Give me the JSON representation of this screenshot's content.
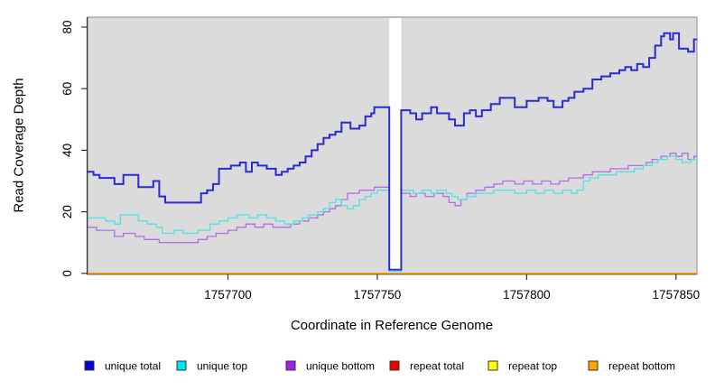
{
  "chart_data": {
    "type": "line",
    "subtype": "step-coverage-plot",
    "title": "",
    "xlabel": "Coordinate in Reference Genome",
    "ylabel": "Read Coverage Depth",
    "x_range": [
      1757653,
      1757857
    ],
    "y_range": [
      0,
      83
    ],
    "x_ticks": [
      1757700,
      1757750,
      1757800,
      1757850
    ],
    "y_ticks": [
      0,
      20,
      40,
      60,
      80
    ],
    "grid": false,
    "legend_position": "bottom",
    "panel_bg": "#dbdbdb",
    "frame_color": "#9a9a9a",
    "axis_color": "#333333",
    "coverage_gap": {
      "x_start": 1757754,
      "x_end": 1757758
    },
    "legend_x": [
      94,
      196,
      317,
      432,
      541,
      652
    ],
    "series": [
      {
        "name": "unique-total",
        "label": "unique total",
        "color": "#2b2bd5",
        "legend_color": "#0000e0",
        "line_width": 2,
        "z": 6,
        "points": [
          [
            1757653,
            33
          ],
          [
            1757655,
            32
          ],
          [
            1757657,
            31
          ],
          [
            1757662,
            29
          ],
          [
            1757665,
            32
          ],
          [
            1757670,
            28
          ],
          [
            1757675,
            30
          ],
          [
            1757677,
            25
          ],
          [
            1757679,
            23
          ],
          [
            1757691,
            26
          ],
          [
            1757693,
            27
          ],
          [
            1757695,
            29
          ],
          [
            1757697,
            34
          ],
          [
            1757701,
            35
          ],
          [
            1757704,
            36
          ],
          [
            1757706,
            33
          ],
          [
            1757708,
            36
          ],
          [
            1757710,
            35
          ],
          [
            1757713,
            34
          ],
          [
            1757716,
            32
          ],
          [
            1757718,
            33
          ],
          [
            1757720,
            34
          ],
          [
            1757722,
            35
          ],
          [
            1757724,
            36
          ],
          [
            1757726,
            38
          ],
          [
            1757728,
            40
          ],
          [
            1757730,
            42
          ],
          [
            1757732,
            44
          ],
          [
            1757734,
            45
          ],
          [
            1757736,
            46
          ],
          [
            1757738,
            49
          ],
          [
            1757741,
            47
          ],
          [
            1757744,
            48
          ],
          [
            1757746,
            51
          ],
          [
            1757748,
            52
          ],
          [
            1757749,
            54
          ],
          [
            1757754,
            1.2
          ],
          [
            1757758,
            53
          ],
          [
            1757761,
            52
          ],
          [
            1757763,
            50
          ],
          [
            1757765,
            52
          ],
          [
            1757768,
            54
          ],
          [
            1757770,
            52
          ],
          [
            1757774,
            50
          ],
          [
            1757776,
            48
          ],
          [
            1757779,
            52
          ],
          [
            1757781,
            53
          ],
          [
            1757783,
            51
          ],
          [
            1757785,
            53
          ],
          [
            1757788,
            55
          ],
          [
            1757791,
            57
          ],
          [
            1757796,
            54
          ],
          [
            1757800,
            56
          ],
          [
            1757804,
            57
          ],
          [
            1757807,
            56
          ],
          [
            1757809,
            54
          ],
          [
            1757812,
            56
          ],
          [
            1757814,
            57
          ],
          [
            1757816,
            59
          ],
          [
            1757819,
            60
          ],
          [
            1757822,
            63
          ],
          [
            1757825,
            64
          ],
          [
            1757828,
            65
          ],
          [
            1757831,
            66
          ],
          [
            1757833,
            67
          ],
          [
            1757835,
            66
          ],
          [
            1757837,
            68
          ],
          [
            1757839,
            67
          ],
          [
            1757841,
            70
          ],
          [
            1757843,
            74
          ],
          [
            1757845,
            77
          ],
          [
            1757846,
            78
          ],
          [
            1757848,
            76
          ],
          [
            1757849,
            78
          ],
          [
            1757851,
            73
          ],
          [
            1757854,
            72
          ],
          [
            1757856,
            76
          ]
        ]
      },
      {
        "name": "unique-top",
        "label": "unique top",
        "color": "#52e2e2",
        "legend_color": "#00e5ee",
        "line_width": 1.3,
        "z": 5,
        "points": [
          [
            1757653,
            18
          ],
          [
            1757659,
            17
          ],
          [
            1757662,
            16
          ],
          [
            1757664,
            19
          ],
          [
            1757670,
            17
          ],
          [
            1757673,
            16
          ],
          [
            1757676,
            15
          ],
          [
            1757678,
            13
          ],
          [
            1757682,
            14
          ],
          [
            1757685,
            13
          ],
          [
            1757690,
            14
          ],
          [
            1757694,
            16
          ],
          [
            1757697,
            17
          ],
          [
            1757700,
            18
          ],
          [
            1757703,
            19
          ],
          [
            1757707,
            18
          ],
          [
            1757710,
            19
          ],
          [
            1757713,
            18
          ],
          [
            1757716,
            17
          ],
          [
            1757719,
            16
          ],
          [
            1757722,
            17
          ],
          [
            1757725,
            18
          ],
          [
            1757727,
            19
          ],
          [
            1757730,
            20
          ],
          [
            1757732,
            21
          ],
          [
            1757734,
            23
          ],
          [
            1757736,
            24
          ],
          [
            1757738,
            22
          ],
          [
            1757740,
            21
          ],
          [
            1757742,
            22
          ],
          [
            1757744,
            24
          ],
          [
            1757746,
            25
          ],
          [
            1757748,
            26
          ],
          [
            1757750,
            27
          ],
          [
            1757754,
            0.6
          ],
          [
            1757758,
            27
          ],
          [
            1757762,
            26
          ],
          [
            1757765,
            27
          ],
          [
            1757768,
            26
          ],
          [
            1757770,
            27
          ],
          [
            1757773,
            26
          ],
          [
            1757775,
            25
          ],
          [
            1757777,
            24
          ],
          [
            1757780,
            25
          ],
          [
            1757783,
            26
          ],
          [
            1757789,
            27
          ],
          [
            1757796,
            26
          ],
          [
            1757800,
            27
          ],
          [
            1757803,
            26
          ],
          [
            1757806,
            27
          ],
          [
            1757809,
            26
          ],
          [
            1757812,
            27
          ],
          [
            1757815,
            26
          ],
          [
            1757817,
            27
          ],
          [
            1757819,
            30
          ],
          [
            1757821,
            31
          ],
          [
            1757824,
            32
          ],
          [
            1757830,
            33
          ],
          [
            1757836,
            34
          ],
          [
            1757839,
            35
          ],
          [
            1757842,
            36
          ],
          [
            1757844,
            37
          ],
          [
            1757847,
            38
          ],
          [
            1757850,
            37
          ],
          [
            1757852,
            36
          ],
          [
            1757855,
            37
          ]
        ]
      },
      {
        "name": "unique-bottom",
        "label": "unique bottom",
        "color": "#b16ee6",
        "legend_color": "#a020f0",
        "line_width": 1.3,
        "z": 4,
        "points": [
          [
            1757653,
            15
          ],
          [
            1757656,
            14
          ],
          [
            1757662,
            12
          ],
          [
            1757665,
            13
          ],
          [
            1757669,
            12
          ],
          [
            1757672,
            11
          ],
          [
            1757677,
            10
          ],
          [
            1757690,
            11
          ],
          [
            1757693,
            12
          ],
          [
            1757696,
            13
          ],
          [
            1757700,
            14
          ],
          [
            1757703,
            15
          ],
          [
            1757706,
            16
          ],
          [
            1757709,
            15
          ],
          [
            1757712,
            16
          ],
          [
            1757715,
            15
          ],
          [
            1757721,
            16
          ],
          [
            1757724,
            17
          ],
          [
            1757727,
            18
          ],
          [
            1757730,
            19
          ],
          [
            1757732,
            20
          ],
          [
            1757734,
            21
          ],
          [
            1757736,
            22
          ],
          [
            1757738,
            24
          ],
          [
            1757740,
            26
          ],
          [
            1757744,
            27
          ],
          [
            1757749,
            28
          ],
          [
            1757754,
            0.6
          ],
          [
            1757758,
            26
          ],
          [
            1757761,
            25
          ],
          [
            1757763,
            26
          ],
          [
            1757766,
            25
          ],
          [
            1757769,
            26
          ],
          [
            1757772,
            25
          ],
          [
            1757774,
            23
          ],
          [
            1757776,
            22
          ],
          [
            1757778,
            24
          ],
          [
            1757780,
            26
          ],
          [
            1757783,
            27
          ],
          [
            1757786,
            28
          ],
          [
            1757789,
            29
          ],
          [
            1757792,
            30
          ],
          [
            1757796,
            29
          ],
          [
            1757799,
            30
          ],
          [
            1757802,
            29
          ],
          [
            1757805,
            30
          ],
          [
            1757808,
            29
          ],
          [
            1757811,
            30
          ],
          [
            1757814,
            31
          ],
          [
            1757819,
            32
          ],
          [
            1757822,
            33
          ],
          [
            1757828,
            34
          ],
          [
            1757834,
            35
          ],
          [
            1757840,
            36
          ],
          [
            1757842,
            37
          ],
          [
            1757845,
            38
          ],
          [
            1757848,
            39
          ],
          [
            1757850,
            38
          ],
          [
            1757852,
            39
          ],
          [
            1757854,
            37
          ],
          [
            1757856,
            38
          ]
        ]
      },
      {
        "name": "repeat-total",
        "label": "repeat total",
        "color": "#e60000",
        "legend_color": "#e60000",
        "line_width": 1,
        "z": 1,
        "points": [
          [
            1757653,
            0
          ]
        ]
      },
      {
        "name": "repeat-top",
        "label": "repeat top",
        "color": "#ffff00",
        "legend_color": "#ffff00",
        "line_width": 1,
        "z": 2,
        "points": [
          [
            1757653,
            0
          ]
        ]
      },
      {
        "name": "repeat-bottom",
        "label": "repeat bottom",
        "color": "#ffa500",
        "legend_color": "#ffa500",
        "line_width": 1.7,
        "z": 3,
        "points": [
          [
            1757653,
            0
          ]
        ]
      }
    ]
  }
}
